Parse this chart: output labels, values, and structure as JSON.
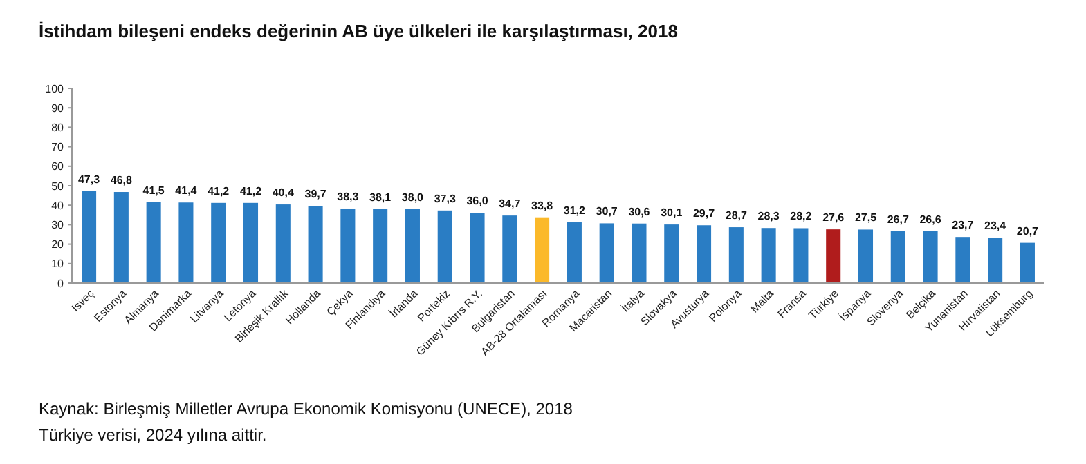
{
  "chart_data": {
    "type": "bar",
    "title": "İstihdam bileşeni endeks değerinin AB üye ülkeleri ile karşılaştırması, 2018",
    "categories": [
      "İsveç",
      "Estonya",
      "Almanya",
      "Danimarka",
      "Litvanya",
      "Letonya",
      "Birleşik Krallık",
      "Hollanda",
      "Çekya",
      "Finlandiya",
      "İrlanda",
      "Portekiz",
      "Güney Kıbrıs R.Y.",
      "Bulgaristan",
      "AB-28 Ortalaması",
      "Romanya",
      "Macaristan",
      "İtalya",
      "Slovakya",
      "Avusturya",
      "Polonya",
      "Malta",
      "Fransa",
      "Türkiye",
      "İspanya",
      "Slovenya",
      "Belçika",
      "Yunanistan",
      "Hırvatistan",
      "Lüksemburg"
    ],
    "values": [
      47.3,
      46.8,
      41.5,
      41.4,
      41.2,
      41.2,
      40.4,
      39.7,
      38.3,
      38.1,
      38.0,
      37.3,
      36.0,
      34.7,
      33.8,
      31.2,
      30.7,
      30.6,
      30.1,
      29.7,
      28.7,
      28.3,
      28.2,
      27.6,
      27.5,
      26.7,
      26.6,
      23.7,
      23.4,
      20.7
    ],
    "value_labels": [
      "47,3",
      "46,8",
      "41,5",
      "41,4",
      "41,2",
      "41,2",
      "40,4",
      "39,7",
      "38,3",
      "38,1",
      "38,0",
      "37,3",
      "36,0",
      "34,7",
      "33,8",
      "31,2",
      "30,7",
      "30,6",
      "30,1",
      "29,7",
      "28,7",
      "28,3",
      "28,2",
      "27,6",
      "27,5",
      "26,7",
      "26,6",
      "23,7",
      "23,4",
      "20,7"
    ],
    "colors": [
      "#2a7dc4",
      "#2a7dc4",
      "#2a7dc4",
      "#2a7dc4",
      "#2a7dc4",
      "#2a7dc4",
      "#2a7dc4",
      "#2a7dc4",
      "#2a7dc4",
      "#2a7dc4",
      "#2a7dc4",
      "#2a7dc4",
      "#2a7dc4",
      "#2a7dc4",
      "#fbb92a",
      "#2a7dc4",
      "#2a7dc4",
      "#2a7dc4",
      "#2a7dc4",
      "#2a7dc4",
      "#2a7dc4",
      "#2a7dc4",
      "#2a7dc4",
      "#b01c1c",
      "#2a7dc4",
      "#2a7dc4",
      "#2a7dc4",
      "#2a7dc4",
      "#2a7dc4",
      "#2a7dc4"
    ],
    "ylim": [
      0,
      100
    ],
    "yticks": [
      0,
      10,
      20,
      30,
      40,
      50,
      60,
      70,
      80,
      90,
      100
    ],
    "grid": false,
    "annotations": [
      "Kaynak: Birleşmiş Milletler Avrupa Ekonomik Komisyonu (UNECE), 2018",
      "Türkiye verisi, 2024 yılına aittir."
    ]
  }
}
